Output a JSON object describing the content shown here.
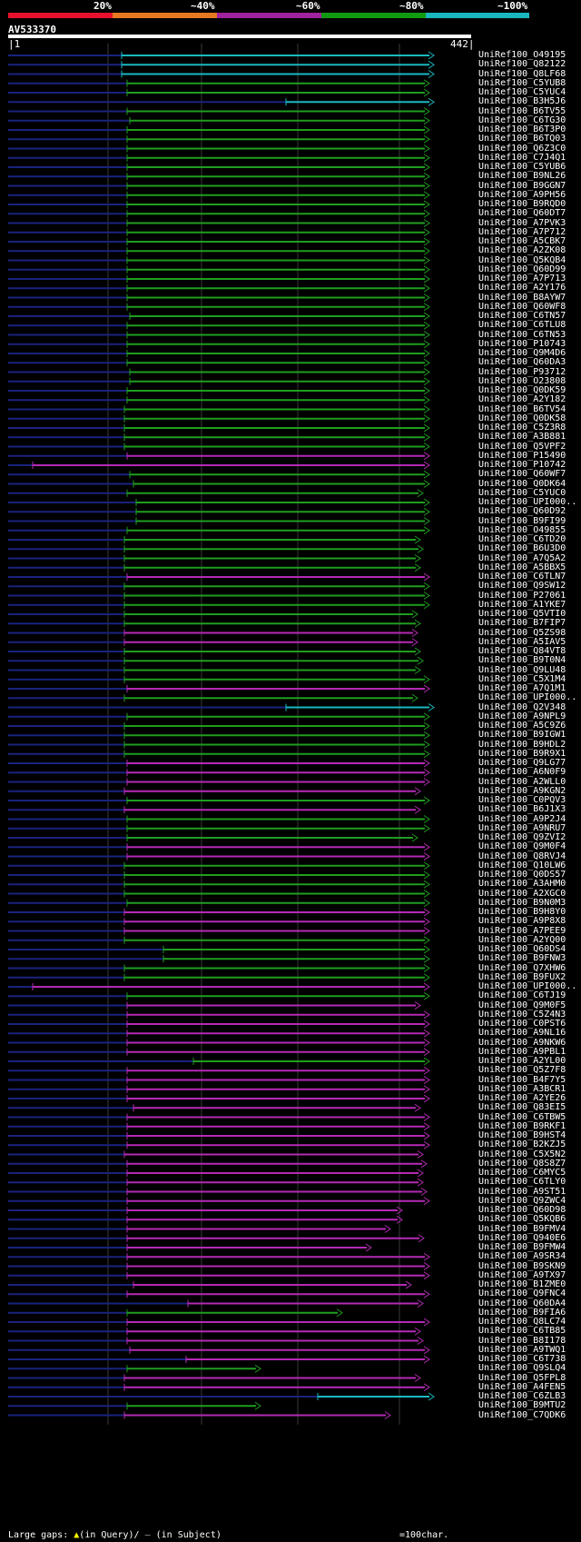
{
  "query_id": "AV533370",
  "ruler": {
    "start": "1",
    "end": "442"
  },
  "identity_scale": [
    {
      "label": "20%",
      "color": "#e8112d"
    },
    {
      "label": "~40%",
      "color": "#e87722"
    },
    {
      "label": "~60%",
      "color": "#a0229e"
    },
    {
      "label": "~80%",
      "color": "#119a11"
    },
    {
      "label": "~100%",
      "color": "#19b8c0"
    }
  ],
  "colors": {
    "green": "#1f9e1f",
    "magenta": "#b52ab5",
    "cyan": "#19b8c0",
    "navy": "#1a237e",
    "grid": "#3a3a3a"
  },
  "legend": {
    "prefix": "Large gaps:",
    "query_marker": "(in Query)/",
    "subject_marker": "(in Subject)",
    "scale": "=100char."
  },
  "hits": [
    {
      "label": "UniRef100_O49195",
      "color": "cyan",
      "start": 134,
      "end": 478
    },
    {
      "label": "UniRef100_Q82122",
      "color": "cyan",
      "start": 134,
      "end": 478
    },
    {
      "label": "UniRef100_Q8LF68",
      "color": "cyan",
      "start": 134,
      "end": 478
    },
    {
      "label": "UniRef100_C5YUB8",
      "color": "green",
      "start": 140,
      "end": 473
    },
    {
      "label": "UniRef100_C5YUC4",
      "color": "green",
      "start": 140,
      "end": 473
    },
    {
      "label": "UniRef100_B3H5J6",
      "color": "cyan",
      "start": 315,
      "end": 478
    },
    {
      "label": "UniRef100_B6TV55",
      "color": "green",
      "start": 140,
      "end": 473
    },
    {
      "label": "UniRef100_C6TG30",
      "color": "green",
      "start": 143,
      "end": 473
    },
    {
      "label": "UniRef100_B6T3P0",
      "color": "green",
      "start": 140,
      "end": 473
    },
    {
      "label": "UniRef100_B6TQ03",
      "color": "green",
      "start": 140,
      "end": 473
    },
    {
      "label": "UniRef100_Q6Z3C0",
      "color": "green",
      "start": 140,
      "end": 473
    },
    {
      "label": "UniRef100_C7J4Q1",
      "color": "green",
      "start": 140,
      "end": 473
    },
    {
      "label": "UniRef100_C5YUB6",
      "color": "green",
      "start": 140,
      "end": 473
    },
    {
      "label": "UniRef100_B9NL26",
      "color": "green",
      "start": 140,
      "end": 473
    },
    {
      "label": "UniRef100_B9GGN7",
      "color": "green",
      "start": 140,
      "end": 473
    },
    {
      "label": "UniRef100_A9PH56",
      "color": "green",
      "start": 140,
      "end": 473
    },
    {
      "label": "UniRef100_B9RQD0",
      "color": "green",
      "start": 140,
      "end": 473
    },
    {
      "label": "UniRef100_Q60DT7",
      "color": "green",
      "start": 140,
      "end": 473
    },
    {
      "label": "UniRef100_A7PVK3",
      "color": "green",
      "start": 140,
      "end": 473
    },
    {
      "label": "UniRef100_A7P712",
      "color": "green",
      "start": 140,
      "end": 473
    },
    {
      "label": "UniRef100_A5CBK7",
      "color": "green",
      "start": 140,
      "end": 473
    },
    {
      "label": "UniRef100_A2ZK08",
      "color": "green",
      "start": 140,
      "end": 473
    },
    {
      "label": "UniRef100_Q5KQB4",
      "color": "green",
      "start": 140,
      "end": 473
    },
    {
      "label": "UniRef100_Q60D99",
      "color": "green",
      "start": 140,
      "end": 473
    },
    {
      "label": "UniRef100_A7P713",
      "color": "green",
      "start": 140,
      "end": 473
    },
    {
      "label": "UniRef100_A2Y176",
      "color": "green",
      "start": 140,
      "end": 473
    },
    {
      "label": "UniRef100_B8AYW7",
      "color": "green",
      "start": 140,
      "end": 473
    },
    {
      "label": "UniRef100_Q60WF8",
      "color": "green",
      "start": 140,
      "end": 473
    },
    {
      "label": "UniRef100_C6TN57",
      "color": "green",
      "start": 143,
      "end": 473
    },
    {
      "label": "UniRef100_C6TLU8",
      "color": "green",
      "start": 140,
      "end": 473
    },
    {
      "label": "UniRef100_C6TN53",
      "color": "green",
      "start": 140,
      "end": 473
    },
    {
      "label": "UniRef100_P10743",
      "color": "green",
      "start": 140,
      "end": 473
    },
    {
      "label": "UniRef100_Q9M4D6",
      "color": "green",
      "start": 140,
      "end": 473
    },
    {
      "label": "UniRef100_Q60DA3",
      "color": "green",
      "start": 140,
      "end": 473
    },
    {
      "label": "UniRef100_P93712",
      "color": "green",
      "start": 143,
      "end": 473
    },
    {
      "label": "UniRef100_O23808",
      "color": "green",
      "start": 143,
      "end": 473
    },
    {
      "label": "UniRef100_Q0DK59",
      "color": "green",
      "start": 140,
      "end": 473
    },
    {
      "label": "UniRef100_A2Y182",
      "color": "green",
      "start": 140,
      "end": 473
    },
    {
      "label": "UniRef100_B6TV54",
      "color": "green",
      "start": 137,
      "end": 473
    },
    {
      "label": "UniRef100_Q0DK58",
      "color": "green",
      "start": 137,
      "end": 473
    },
    {
      "label": "UniRef100_C5Z3R8",
      "color": "green",
      "start": 137,
      "end": 473
    },
    {
      "label": "UniRef100_A3B881",
      "color": "green",
      "start": 137,
      "end": 473
    },
    {
      "label": "UniRef100_Q5VPF2",
      "color": "green",
      "start": 137,
      "end": 473
    },
    {
      "label": "UniRef100_P15490",
      "color": "magenta",
      "start": 140,
      "end": 473
    },
    {
      "label": "UniRef100_P10742",
      "color": "magenta",
      "start": 36,
      "end": 473
    },
    {
      "label": "UniRef100_Q60WF7",
      "color": "green",
      "start": 143,
      "end": 473
    },
    {
      "label": "UniRef100_Q0DK64",
      "color": "green",
      "start": 147,
      "end": 473
    },
    {
      "label": "UniRef100_C5YUC0",
      "color": "green",
      "start": 140,
      "end": 466
    },
    {
      "label": "UniRef100_UPI000..",
      "color": "green",
      "start": 150,
      "end": 473
    },
    {
      "label": "UniRef100_Q60D92",
      "color": "green",
      "start": 150,
      "end": 473
    },
    {
      "label": "UniRef100_B9FI99",
      "color": "green",
      "start": 150,
      "end": 473
    },
    {
      "label": "UniRef100_O49855",
      "color": "green",
      "start": 140,
      "end": 473
    },
    {
      "label": "UniRef100_C6TD20",
      "color": "green",
      "start": 137,
      "end": 463
    },
    {
      "label": "UniRef100_B6U3D0",
      "color": "green",
      "start": 137,
      "end": 466
    },
    {
      "label": "UniRef100_A7Q5A2",
      "color": "green",
      "start": 137,
      "end": 463
    },
    {
      "label": "UniRef100_A5BBX5",
      "color": "green",
      "start": 137,
      "end": 463
    },
    {
      "label": "UniRef100_C6TLN7",
      "color": "magenta",
      "start": 140,
      "end": 473
    },
    {
      "label": "UniRef100_Q9SW12",
      "color": "green",
      "start": 137,
      "end": 473
    },
    {
      "label": "UniRef100_P27061",
      "color": "green",
      "start": 137,
      "end": 473
    },
    {
      "label": "UniRef100_A1YKE7",
      "color": "green",
      "start": 137,
      "end": 473
    },
    {
      "label": "UniRef100_Q5VTI0",
      "color": "green",
      "start": 137,
      "end": 460
    },
    {
      "label": "UniRef100_B7FIP7",
      "color": "green",
      "start": 137,
      "end": 463
    },
    {
      "label": "UniRef100_Q5ZS98",
      "color": "magenta",
      "start": 137,
      "end": 460
    },
    {
      "label": "UniRef100_A5IAV5",
      "color": "magenta",
      "start": 137,
      "end": 460
    },
    {
      "label": "UniRef100_Q84VT8",
      "color": "green",
      "start": 137,
      "end": 463
    },
    {
      "label": "UniRef100_B9T0N4",
      "color": "green",
      "start": 137,
      "end": 466
    },
    {
      "label": "UniRef100_Q9LU48",
      "color": "green",
      "start": 137,
      "end": 463
    },
    {
      "label": "UniRef100_C5X1M4",
      "color": "green",
      "start": 137,
      "end": 473
    },
    {
      "label": "UniRef100_A7Q1M1",
      "color": "magenta",
      "start": 140,
      "end": 473
    },
    {
      "label": "UniRef100_UPI000..",
      "color": "green",
      "start": 137,
      "end": 460
    },
    {
      "label": "UniRef100_Q2V348",
      "color": "cyan",
      "start": 315,
      "end": 478
    },
    {
      "label": "UniRef100_A9NPL9",
      "color": "green",
      "start": 140,
      "end": 473
    },
    {
      "label": "UniRef100_A5C9Z6",
      "color": "green",
      "start": 137,
      "end": 473
    },
    {
      "label": "UniRef100_B9IGW1",
      "color": "green",
      "start": 137,
      "end": 473
    },
    {
      "label": "UniRef100_B9HDL2",
      "color": "green",
      "start": 137,
      "end": 473
    },
    {
      "label": "UniRef100_B9R9X1",
      "color": "green",
      "start": 137,
      "end": 473
    },
    {
      "label": "UniRef100_Q9LG77",
      "color": "magenta",
      "start": 140,
      "end": 473
    },
    {
      "label": "UniRef100_A6N0F9",
      "color": "magenta",
      "start": 140,
      "end": 473
    },
    {
      "label": "UniRef100_A2WLL0",
      "color": "magenta",
      "start": 140,
      "end": 473
    },
    {
      "label": "UniRef100_A9KGN2",
      "color": "magenta",
      "start": 137,
      "end": 463
    },
    {
      "label": "UniRef100_C0PQV3",
      "color": "green",
      "start": 140,
      "end": 473
    },
    {
      "label": "UniRef100_B6J1X3",
      "color": "magenta",
      "start": 137,
      "end": 463
    },
    {
      "label": "UniRef100_A9P2J4",
      "color": "green",
      "start": 140,
      "end": 473
    },
    {
      "label": "UniRef100_A9NRU7",
      "color": "green",
      "start": 140,
      "end": 473
    },
    {
      "label": "UniRef100_Q9ZVI2",
      "color": "green",
      "start": 140,
      "end": 460
    },
    {
      "label": "UniRef100_Q9M0F4",
      "color": "magenta",
      "start": 140,
      "end": 473
    },
    {
      "label": "UniRef100_Q8RVJ4",
      "color": "magenta",
      "start": 140,
      "end": 473
    },
    {
      "label": "UniRef100_Q10LW6",
      "color": "green",
      "start": 137,
      "end": 473
    },
    {
      "label": "UniRef100_Q0DS57",
      "color": "green",
      "start": 137,
      "end": 473
    },
    {
      "label": "UniRef100_A3AHM0",
      "color": "green",
      "start": 137,
      "end": 473
    },
    {
      "label": "UniRef100_A2XGC0",
      "color": "green",
      "start": 137,
      "end": 473
    },
    {
      "label": "UniRef100_B9N0M3",
      "color": "green",
      "start": 140,
      "end": 473
    },
    {
      "label": "UniRef100_B9H8Y0",
      "color": "magenta",
      "start": 137,
      "end": 473
    },
    {
      "label": "UniRef100_A9P8X8",
      "color": "magenta",
      "start": 137,
      "end": 473
    },
    {
      "label": "UniRef100_A7PEE9",
      "color": "magenta",
      "start": 137,
      "end": 473
    },
    {
      "label": "UniRef100_A2YQ00",
      "color": "green",
      "start": 137,
      "end": 473
    },
    {
      "label": "UniRef100_Q60DS4",
      "color": "green",
      "start": 180,
      "end": 473
    },
    {
      "label": "UniRef100_B9FNW3",
      "color": "green",
      "start": 180,
      "end": 473
    },
    {
      "label": "UniRef100_Q7XHW6",
      "color": "green",
      "start": 137,
      "end": 473
    },
    {
      "label": "UniRef100_B9FUX2",
      "color": "green",
      "start": 137,
      "end": 473
    },
    {
      "label": "UniRef100_UPI000..",
      "color": "magenta",
      "start": 36,
      "end": 473
    },
    {
      "label": "UniRef100_C6TJ19",
      "color": "green",
      "start": 140,
      "end": 473
    },
    {
      "label": "UniRef100_Q9M0F5",
      "color": "magenta",
      "start": 140,
      "end": 463
    },
    {
      "label": "UniRef100_C5Z4N3",
      "color": "magenta",
      "start": 140,
      "end": 473
    },
    {
      "label": "UniRef100_C0PST6",
      "color": "magenta",
      "start": 140,
      "end": 473
    },
    {
      "label": "UniRef100_A9NL16",
      "color": "magenta",
      "start": 140,
      "end": 473
    },
    {
      "label": "UniRef100_A9NKW6",
      "color": "magenta",
      "start": 140,
      "end": 473
    },
    {
      "label": "UniRef100_A9PBL1",
      "color": "magenta",
      "start": 140,
      "end": 473
    },
    {
      "label": "UniRef100_A2YL00",
      "color": "green",
      "start": 213,
      "end": 473
    },
    {
      "label": "UniRef100_Q5Z7F8",
      "color": "magenta",
      "start": 140,
      "end": 473
    },
    {
      "label": "UniRef100_B4F7Y5",
      "color": "magenta",
      "start": 140,
      "end": 473
    },
    {
      "label": "UniRef100_A3BCR1",
      "color": "magenta",
      "start": 140,
      "end": 473
    },
    {
      "label": "UniRef100_A2YE26",
      "color": "magenta",
      "start": 140,
      "end": 473
    },
    {
      "label": "UniRef100_Q83EI5",
      "color": "magenta",
      "start": 147,
      "end": 463
    },
    {
      "label": "UniRef100_C6TBW5",
      "color": "magenta",
      "start": 140,
      "end": 473
    },
    {
      "label": "UniRef100_B9RKF1",
      "color": "magenta",
      "start": 140,
      "end": 473
    },
    {
      "label": "UniRef100_B9HST4",
      "color": "magenta",
      "start": 140,
      "end": 473
    },
    {
      "label": "UniRef100_B2KZJ5",
      "color": "magenta",
      "start": 140,
      "end": 473
    },
    {
      "label": "UniRef100_C5X5N2",
      "color": "magenta",
      "start": 137,
      "end": 466
    },
    {
      "label": "UniRef100_Q8S8Z7",
      "color": "magenta",
      "start": 140,
      "end": 470
    },
    {
      "label": "UniRef100_C6MYC5",
      "color": "magenta",
      "start": 140,
      "end": 466
    },
    {
      "label": "UniRef100_C6TLY0",
      "color": "magenta",
      "start": 140,
      "end": 466
    },
    {
      "label": "UniRef100_A9ST51",
      "color": "magenta",
      "start": 140,
      "end": 470
    },
    {
      "label": "UniRef100_Q9ZWC4",
      "color": "magenta",
      "start": 140,
      "end": 473
    },
    {
      "label": "UniRef100_Q60D98",
      "color": "magenta",
      "start": 140,
      "end": 443
    },
    {
      "label": "UniRef100_Q5KQB6",
      "color": "magenta",
      "start": 140,
      "end": 443
    },
    {
      "label": "UniRef100_B9FMV4",
      "color": "magenta",
      "start": 140,
      "end": 430
    },
    {
      "label": "UniRef100_Q940E6",
      "color": "magenta",
      "start": 140,
      "end": 467
    },
    {
      "label": "UniRef100_B9FMW4",
      "color": "magenta",
      "start": 140,
      "end": 409
    },
    {
      "label": "UniRef100_A9SR34",
      "color": "magenta",
      "start": 140,
      "end": 473
    },
    {
      "label": "UniRef100_B9SKN9",
      "color": "magenta",
      "start": 140,
      "end": 473
    },
    {
      "label": "UniRef100_A9TX97",
      "color": "magenta",
      "start": 140,
      "end": 473
    },
    {
      "label": "UniRef100_B1ZME0",
      "color": "magenta",
      "start": 147,
      "end": 453
    },
    {
      "label": "UniRef100_Q9FNC4",
      "color": "magenta",
      "start": 140,
      "end": 473
    },
    {
      "label": "UniRef100_Q60DA4",
      "color": "magenta",
      "start": 207,
      "end": 466
    },
    {
      "label": "UniRef100_B9FIA6",
      "color": "green",
      "start": 140,
      "end": 377
    },
    {
      "label": "UniRef100_Q8LC74",
      "color": "magenta",
      "start": 140,
      "end": 473
    },
    {
      "label": "UniRef100_C6TB85",
      "color": "magenta",
      "start": 140,
      "end": 463
    },
    {
      "label": "UniRef100_B8I178",
      "color": "magenta",
      "start": 140,
      "end": 466
    },
    {
      "label": "UniRef100_A9TWQ1",
      "color": "magenta",
      "start": 143,
      "end": 473
    },
    {
      "label": "UniRef100_C6T738",
      "color": "magenta",
      "start": 205,
      "end": 473
    },
    {
      "label": "UniRef100_Q9SLQ4",
      "color": "green",
      "start": 140,
      "end": 287
    },
    {
      "label": "UniRef100_Q5FPL8",
      "color": "magenta",
      "start": 137,
      "end": 463
    },
    {
      "label": "UniRef100_A4FEN5",
      "color": "magenta",
      "start": 137,
      "end": 473
    },
    {
      "label": "UniRef100_C6ZLB3",
      "color": "cyan",
      "start": 350,
      "end": 478
    },
    {
      "label": "UniRef100_B9MTU2",
      "color": "green",
      "start": 140,
      "end": 287
    },
    {
      "label": "UniRef100_C7QDK6",
      "color": "magenta",
      "start": 137,
      "end": 430
    }
  ]
}
